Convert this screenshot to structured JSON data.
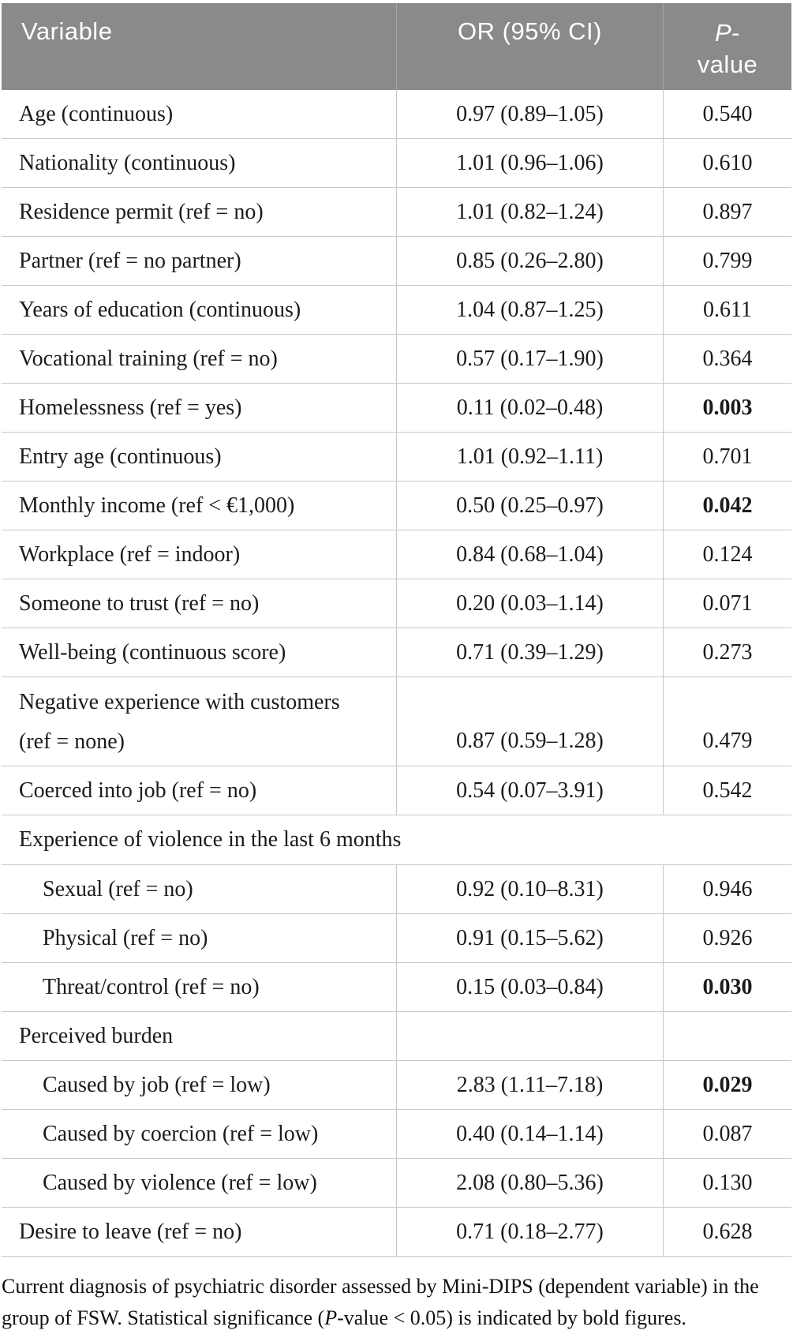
{
  "colors": {
    "header_bg": "#8a8a8a",
    "header_text": "#ffffff",
    "row_divider": "#c9c9c9",
    "column_divider": "#c6c6c6",
    "body_text": "#1b1b1b"
  },
  "table": {
    "header": {
      "col1": "Variable",
      "col2": "OR (95% CI)",
      "col3": {
        "italic": "P",
        "dash": "-",
        "line2": "value"
      }
    },
    "rows": [
      {
        "type": "data",
        "label": "Age (continuous)",
        "or": "0.97 (0.89–1.05)",
        "p": "0.540",
        "bold": false
      },
      {
        "type": "data",
        "label": "Nationality (continuous)",
        "or": "1.01 (0.96–1.06)",
        "p": "0.610",
        "bold": false
      },
      {
        "type": "data",
        "label": "Residence permit (ref = no)",
        "or": "1.01 (0.82–1.24)",
        "p": "0.897",
        "bold": false
      },
      {
        "type": "data",
        "label": "Partner (ref = no partner)",
        "or": "0.85 (0.26–2.80)",
        "p": "0.799",
        "bold": false
      },
      {
        "type": "data",
        "label": "Years of education (continuous)",
        "or": "1.04 (0.87–1.25)",
        "p": "0.611",
        "bold": false
      },
      {
        "type": "data",
        "label": "Vocational training (ref = no)",
        "or": "0.57 (0.17–1.90)",
        "p": "0.364",
        "bold": false
      },
      {
        "type": "data",
        "label": "Homelessness (ref = yes)",
        "or": "0.11 (0.02–0.48)",
        "p": "0.003",
        "bold": true
      },
      {
        "type": "data",
        "label": "Entry age (continuous)",
        "or": "1.01 (0.92–1.11)",
        "p": "0.701",
        "bold": false
      },
      {
        "type": "data",
        "label": "Monthly income (ref < €1,000)",
        "or": "0.50 (0.25–0.97)",
        "p": "0.042",
        "bold": true
      },
      {
        "type": "data",
        "label": "Workplace (ref = indoor)",
        "or": "0.84 (0.68–1.04)",
        "p": "0.124",
        "bold": false
      },
      {
        "type": "data",
        "label": "Someone to trust (ref = no)",
        "or": "0.20 (0.03–1.14)",
        "p": "0.071",
        "bold": false
      },
      {
        "type": "data",
        "label": "Well-being (continuous score)",
        "or": "0.71 (0.39–1.29)",
        "p": "0.273",
        "bold": false
      },
      {
        "type": "data-tall",
        "label_line1": "Negative experience with customers",
        "label_line2": "(ref = none)",
        "or": "0.87 (0.59–1.28)",
        "p": "0.479",
        "bold": false
      },
      {
        "type": "data",
        "label": "Coerced into job (ref = no)",
        "or": "0.54 (0.07–3.91)",
        "p": "0.542",
        "bold": false
      },
      {
        "type": "section-full",
        "label": "Experience of violence in the last 6 months"
      },
      {
        "type": "data-sub",
        "label": "Sexual (ref = no)",
        "or": "0.92 (0.10–8.31)",
        "p": "0.946",
        "bold": false
      },
      {
        "type": "data-sub",
        "label": "Physical (ref = no)",
        "or": "0.91 (0.15–5.62)",
        "p": "0.926",
        "bold": false
      },
      {
        "type": "data-sub",
        "label": "Threat/control (ref = no)",
        "or": "0.15 (0.03–0.84)",
        "p": "0.030",
        "bold": true
      },
      {
        "type": "section-cells",
        "label": "Perceived burden"
      },
      {
        "type": "data-sub",
        "label": "Caused by job (ref = low)",
        "or": "2.83 (1.11–7.18)",
        "p": "0.029",
        "bold": true
      },
      {
        "type": "data-sub",
        "label": "Caused by coercion (ref = low)",
        "or": "0.40 (0.14–1.14)",
        "p": "0.087",
        "bold": false
      },
      {
        "type": "data-sub",
        "label": "Caused by violence (ref = low)",
        "or": "2.08 (0.80–5.36)",
        "p": "0.130",
        "bold": false
      },
      {
        "type": "data",
        "label": "Desire to leave (ref = no)",
        "or": "0.71 (0.18–2.77)",
        "p": "0.628",
        "bold": false
      }
    ]
  },
  "footer": {
    "part1": "Current diagnosis of psychiatric disorder assessed by Mini-DIPS (dependent variable) in the group of FSW. Statistical significance (",
    "italic": "P",
    "part2": "-value < 0.05) is indicated by bold figures."
  }
}
